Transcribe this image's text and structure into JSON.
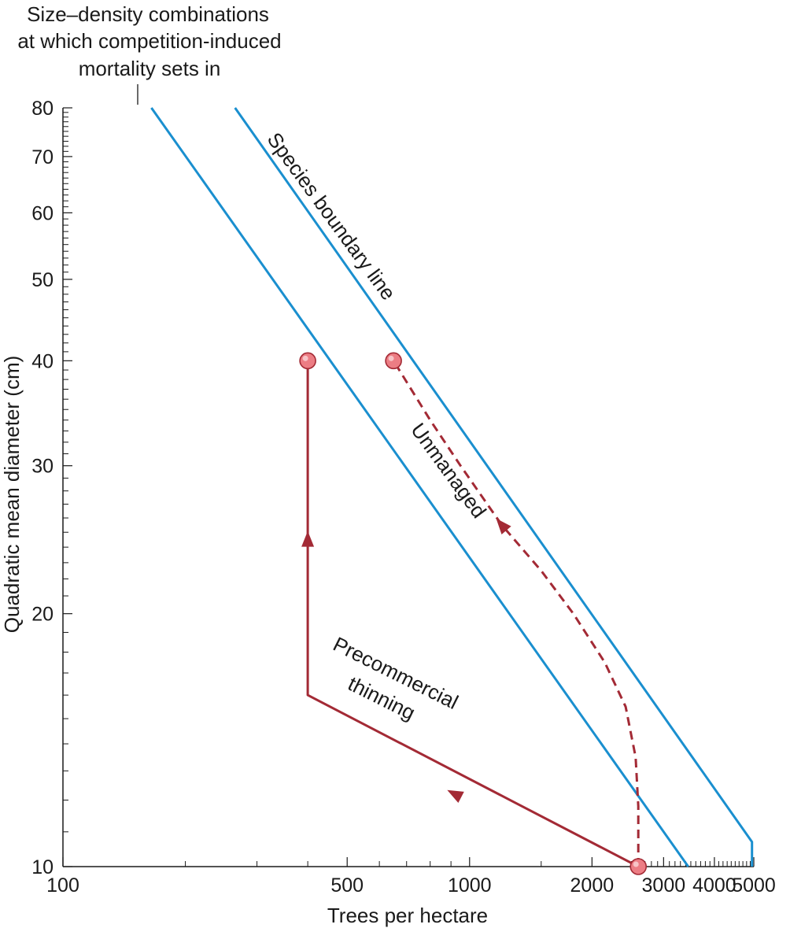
{
  "chart_data": {
    "type": "line",
    "title": "",
    "xlabel": "Trees per hectare",
    "ylabel": "Quadratic mean diameter (cm)",
    "x_scale": "log",
    "y_scale": "log",
    "xlim": [
      100,
      5000
    ],
    "ylim": [
      10,
      80
    ],
    "grid": false,
    "x_tick_labels": [
      {
        "value": 100,
        "label": "100"
      },
      {
        "value": 500,
        "label": "500"
      },
      {
        "value": 1000,
        "label": "1000"
      },
      {
        "value": 2000,
        "label": "2000"
      },
      {
        "value": 3000,
        "label": "3000"
      },
      {
        "value": 4000,
        "label": "4000"
      },
      {
        "value": 5000,
        "label": "5000"
      }
    ],
    "x_minor_ticks": [
      200,
      300,
      400,
      600,
      700,
      800,
      900,
      1500,
      2500,
      2600,
      2700,
      2800,
      2900,
      3100,
      3200,
      3300,
      3400,
      3500,
      3600,
      3700,
      3800,
      3900,
      4100,
      4200,
      4300,
      4400,
      4500,
      4600,
      4700,
      4800,
      4900
    ],
    "y_tick_labels": [
      {
        "value": 10,
        "label": "10"
      },
      {
        "value": 20,
        "label": "20"
      },
      {
        "value": 30,
        "label": "30"
      },
      {
        "value": 40,
        "label": "40"
      },
      {
        "value": 50,
        "label": "50"
      },
      {
        "value": 60,
        "label": "60"
      },
      {
        "value": 70,
        "label": "70"
      },
      {
        "value": 80,
        "label": "80"
      }
    ],
    "y_minor_ticks": [
      11,
      12,
      13,
      14,
      15,
      16,
      17,
      18,
      19,
      21,
      22,
      23,
      24,
      25,
      26,
      27,
      28,
      29,
      31,
      32,
      33,
      34,
      35,
      36,
      37,
      38,
      39,
      41,
      42,
      43,
      44,
      45,
      46,
      47,
      48,
      49,
      51,
      52,
      53,
      54,
      55,
      56,
      57,
      58,
      59,
      61,
      62,
      63,
      64,
      65,
      66,
      67,
      68,
      69,
      71,
      72,
      73,
      74,
      75,
      76,
      77,
      78,
      79
    ],
    "series": [
      {
        "id": "mortality-line",
        "style": "solid",
        "color": "#1a8fcf",
        "points": [
          [
            165,
            80
          ],
          [
            3450,
            10
          ]
        ]
      },
      {
        "id": "species-boundary-line",
        "style": "solid",
        "color": "#1a8fcf",
        "points": [
          [
            265,
            80
          ],
          [
            4950,
            10.7
          ],
          [
            4950,
            10
          ]
        ]
      },
      {
        "id": "unmanaged-path",
        "style": "dashed",
        "color": "#a32a35",
        "points": [
          [
            2600,
            10
          ],
          [
            2600,
            11.8
          ],
          [
            2560,
            13.5
          ],
          [
            2420,
            15.5
          ],
          [
            2150,
            17.5
          ],
          [
            1800,
            20
          ],
          [
            1500,
            22.5
          ],
          [
            1200,
            25.5
          ],
          [
            950,
            30
          ],
          [
            800,
            34
          ],
          [
            650,
            40
          ]
        ]
      },
      {
        "id": "precommercial-thinning-path",
        "style": "solid",
        "color": "#a32a35",
        "points": [
          [
            2600,
            10
          ],
          [
            400,
            16
          ],
          [
            400,
            40
          ]
        ]
      }
    ],
    "arrows": [
      {
        "id": "arrow-thinning",
        "at": [
          920,
          12.2
        ],
        "from": [
          2600,
          10
        ],
        "to": [
          400,
          16
        ]
      },
      {
        "id": "arrow-vertical",
        "at": [
          400,
          24.5
        ],
        "from": [
          400,
          16
        ],
        "to": [
          400,
          40
        ]
      },
      {
        "id": "arrow-unmanaged",
        "at": [
          1200,
          25.5
        ],
        "from": [
          1500,
          22.5
        ],
        "to": [
          1200,
          25.5
        ]
      }
    ],
    "markers": [
      {
        "id": "marker-start",
        "x": 2600,
        "y": 10
      },
      {
        "id": "marker-thinned-end",
        "x": 400,
        "y": 40
      },
      {
        "id": "marker-unmanaged-end",
        "x": 650,
        "y": 40
      }
    ],
    "annotations": [
      {
        "id": "annotation-mortality",
        "lines": [
          "Size–density combinations",
          "at which competition-induced",
          "mortality sets in"
        ]
      },
      {
        "id": "label-species-boundary",
        "text": "Species boundary line"
      },
      {
        "id": "label-unmanaged",
        "text": "Unmanaged"
      },
      {
        "id": "label-precommercial",
        "lines": [
          "Precommercial",
          "thinning"
        ]
      }
    ]
  }
}
